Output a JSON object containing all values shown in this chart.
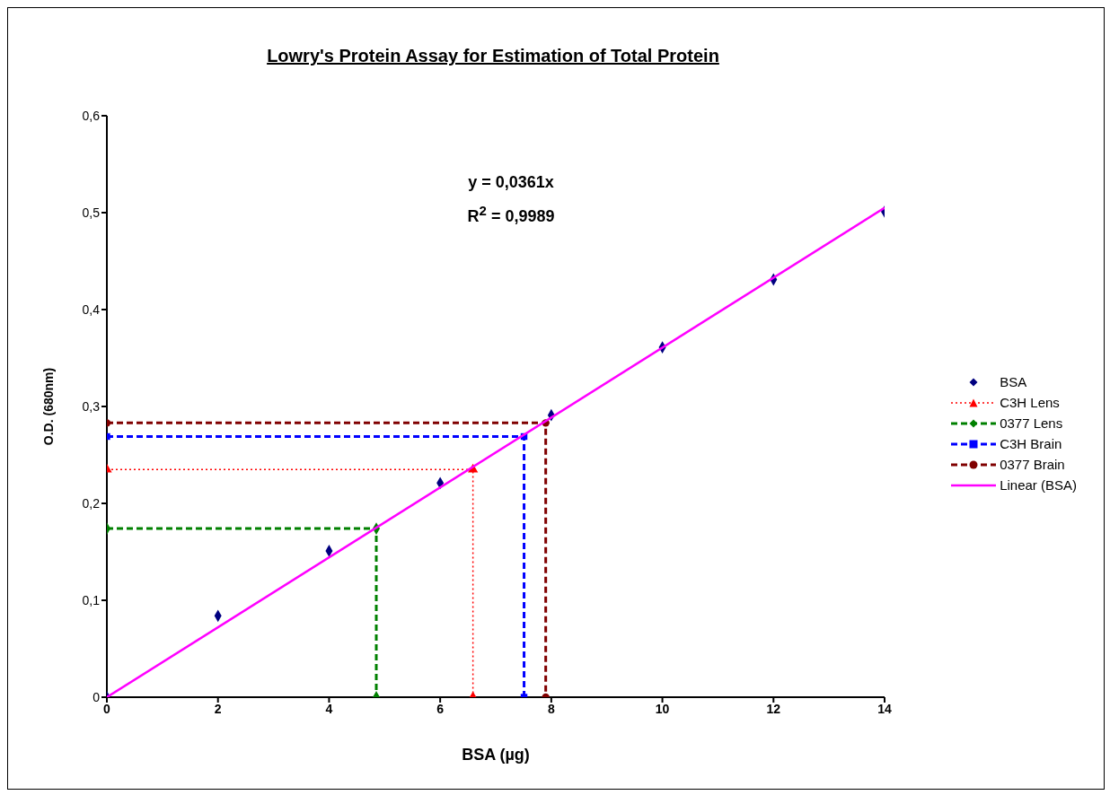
{
  "chart_data": {
    "type": "scatter",
    "title": "Lowry's Protein Assay for Estimation of Total Protein",
    "xlabel": "BSA (µg)",
    "ylabel": "O.D. (680nm)",
    "annotations": [
      "y = 0,0361x",
      "R$^{2}$ = 0,9989"
    ],
    "xlim": [
      0,
      14
    ],
    "xticks": [
      0,
      2,
      4,
      6,
      8,
      10,
      12,
      14
    ],
    "ylim": [
      0,
      0.6
    ],
    "yticks": [
      0,
      {
        "value": 0.1,
        "label": "0,1"
      },
      {
        "value": 0.2,
        "label": "0,2"
      },
      {
        "value": 0.3,
        "label": "0,3"
      },
      {
        "value": 0.4,
        "label": "0,4"
      },
      {
        "value": 0.5,
        "label": "0,5"
      },
      {
        "value": 0.6,
        "label": "0,6"
      }
    ],
    "legend": "right",
    "series": [
      {
        "name": "BSA",
        "type": "scatter",
        "marker": "diamond",
        "color": "#000080",
        "x": [
          0,
          2,
          4,
          6,
          8,
          10,
          12,
          14
        ],
        "values": [
          0,
          0.084,
          0.151,
          0.221,
          0.291,
          0.361,
          0.431,
          0.501
        ]
      },
      {
        "name": "C3H Lens",
        "type": "line",
        "marker": "triangle",
        "line_style": "dotted",
        "color": "#ff0000",
        "x": [
          0,
          6.59,
          6.59
        ],
        "values": [
          0.235,
          0.235,
          0
        ]
      },
      {
        "name": "0377  Lens",
        "type": "line",
        "marker": "diamond",
        "line_style": "dashed",
        "color": "#008000",
        "x": [
          0,
          4.85,
          4.85
        ],
        "values": [
          0.174,
          0.174,
          0
        ]
      },
      {
        "name": "C3H Brain",
        "type": "line",
        "marker": "square",
        "line_style": "dashed",
        "color": "#0000ff",
        "x": [
          0,
          7.51,
          7.51
        ],
        "values": [
          0.269,
          0.269,
          0
        ]
      },
      {
        "name": "0377 Brain",
        "type": "line",
        "marker": "circle",
        "line_style": "dashed",
        "color": "#800000",
        "x": [
          0,
          7.9,
          7.9
        ],
        "values": [
          0.283,
          0.283,
          0
        ]
      },
      {
        "name": "Linear (BSA)",
        "type": "line",
        "marker": "none",
        "line_style": "solid",
        "color": "#ff00ff",
        "x": [
          0,
          14
        ],
        "values": [
          0,
          0.505
        ]
      }
    ]
  }
}
